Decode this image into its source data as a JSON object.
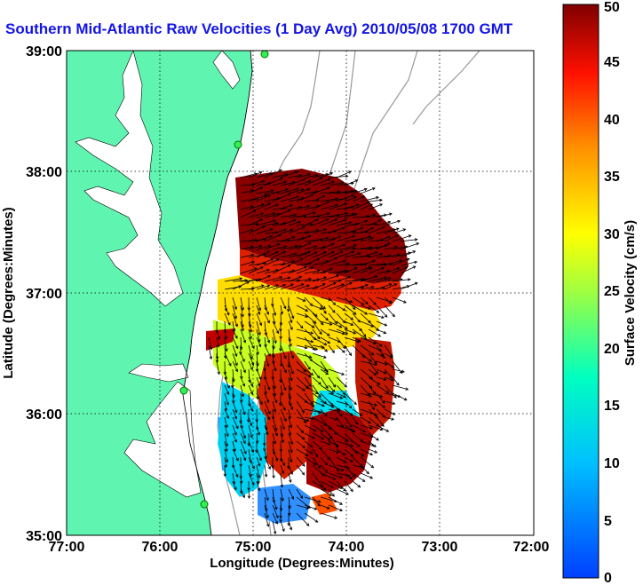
{
  "title": "Southern Mid-Atlantic Raw Velocities (1 Day Avg) 2010/05/08 1700 GMT",
  "map": {
    "xlabel": "Longitude (Degrees:Minutes)",
    "ylabel": "Latitude (Degrees:Minutes)",
    "x_ticks": [
      "77:00",
      "76:00",
      "75:00",
      "74:00",
      "73:00",
      "72:00"
    ],
    "y_ticks": [
      "35:00",
      "36:00",
      "37:00",
      "38:00",
      "39:00"
    ],
    "lon_range": [
      -77,
      -72
    ],
    "lat_range": [
      35,
      39
    ],
    "grid": "dotted",
    "land_color": "#5ff5b0",
    "ocean_color": "#ffffff"
  },
  "colorbar": {
    "label": "Surface Velocity (cm/s)",
    "ticks": [
      "0",
      "5",
      "10",
      "15",
      "20",
      "25",
      "30",
      "35",
      "40",
      "45",
      "50"
    ],
    "range": [
      0,
      50
    ],
    "colormap": "jet"
  }
}
